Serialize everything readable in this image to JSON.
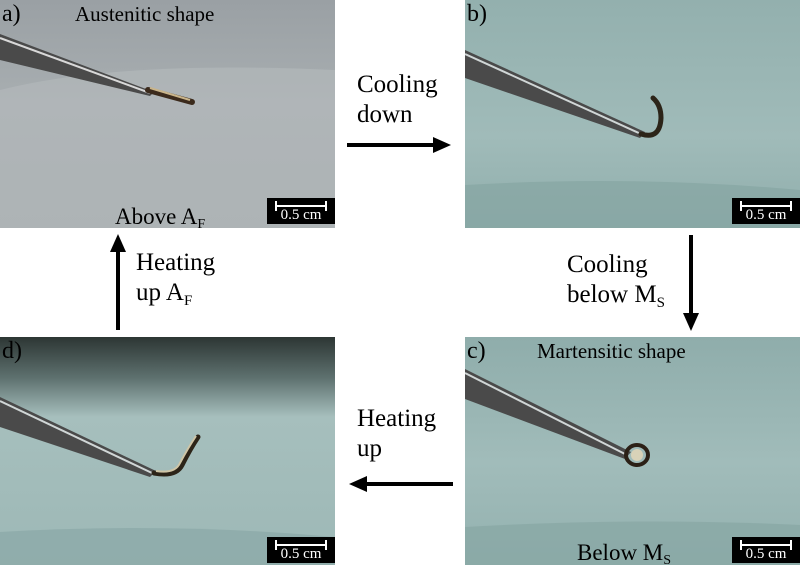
{
  "panels": {
    "a": {
      "letter": "a)",
      "title": "Austenitic shape",
      "condition_main": "Above A",
      "condition_sub": "F",
      "scale": "0.5 cm"
    },
    "b": {
      "letter": "b)",
      "scale": "0.5 cm"
    },
    "c": {
      "letter": "c)",
      "title": "Martensitic shape",
      "condition_main": "Below M",
      "condition_sub": "S",
      "scale": "0.5 cm"
    },
    "d": {
      "letter": "d)",
      "scale": "0.5 cm"
    }
  },
  "transitions": {
    "a_to_b": {
      "line1": "Cooling",
      "line2": "down",
      "direction": "right"
    },
    "b_to_c": {
      "line1": "Cooling",
      "line2_main": "below M",
      "line2_sub": "S",
      "direction": "down"
    },
    "c_to_d": {
      "line1": "Heating",
      "line2": "up",
      "direction": "left"
    },
    "d_to_a": {
      "line1": "Heating",
      "line2_main": "up A",
      "line2_sub": "F",
      "direction": "up"
    }
  },
  "colors": {
    "background_a": "#a9afb2",
    "background_bcd": "#9db8b6",
    "arrow": "#000000"
  }
}
